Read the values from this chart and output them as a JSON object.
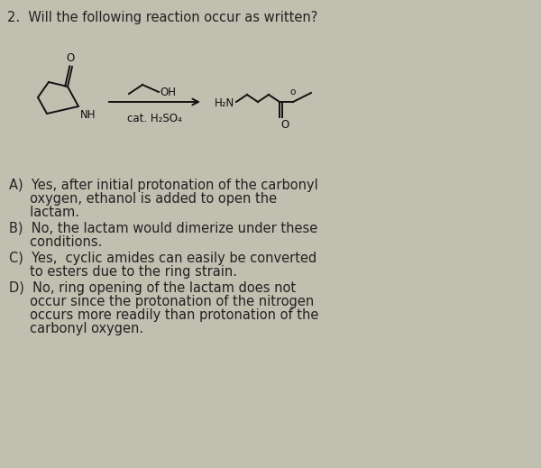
{
  "title": "2.  Will the following reaction occur as written?",
  "background_color": "#c0bfb0",
  "text_color": "#222222",
  "answer_A_line1": "A)  Yes, after initial protonation of the carbonyl",
  "answer_A_line2": "     oxygen, ethanol is added to open the",
  "answer_A_line3": "     lactam.",
  "answer_B_line1": "B)  No, the lactam would dimerize under these",
  "answer_B_line2": "     conditions.",
  "answer_C_line1": "C)  Yes,  cyclic amides can easily be converted",
  "answer_C_line2": "     to esters due to the ring strain.",
  "answer_D_line1": "D)  No, ring opening of the lactam does not",
  "answer_D_line2": "     occur since the protonation of the nitrogen",
  "answer_D_line3": "     occurs more readily than protonation of the",
  "answer_D_line4": "     carbonyl oxygen.",
  "cat_label": "cat. H₂SO₄",
  "oh_label": "OH",
  "h2n_label": "H₂N",
  "nh_label": "NH",
  "o_label": "O",
  "line_color": "#111111",
  "lw": 1.4,
  "title_fontsize": 10.5,
  "answer_fontsize": 10.5,
  "chem_fontsize": 8.5
}
